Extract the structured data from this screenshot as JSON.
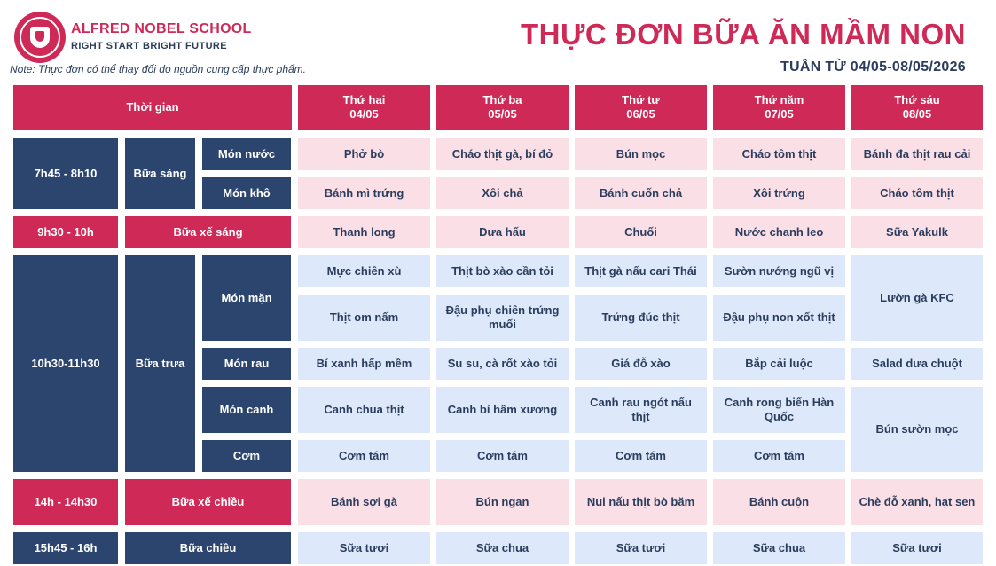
{
  "header": {
    "school_name": "ALFRED NOBEL SCHOOL",
    "slogan": "RIGHT START  BRIGHT FUTURE",
    "note": "Note: Thực đơn có thể thay đổi do nguồn cung cấp thực phẩm.",
    "title": "THỰC ĐƠN BỮA ĂN MẦM NON",
    "week": "TUẦN TỪ 04/05-08/05/2026"
  },
  "colors": {
    "brand_red": "#cf2a57",
    "navy": "#2b456e",
    "pink_cell": "#fbdfe7",
    "blue_cell": "#dde9fb"
  },
  "icons": {
    "logo": "school-crest-icon"
  },
  "table": {
    "time_header": "Thời gian",
    "days": [
      {
        "name": "Thứ hai",
        "date": "04/05"
      },
      {
        "name": "Thứ ba",
        "date": "05/05"
      },
      {
        "name": "Thứ tư",
        "date": "06/05"
      },
      {
        "name": "Thứ năm",
        "date": "07/05"
      },
      {
        "name": "Thứ sáu",
        "date": "08/05"
      }
    ],
    "breakfast": {
      "time": "7h45 - 8h10",
      "meal": "Bữa sáng",
      "soup_label": "Món nước",
      "dry_label": "Món khô",
      "soup": [
        "Phở bò",
        "Cháo thịt gà, bí đỏ",
        "Bún mọc",
        "Cháo tôm thịt",
        "Bánh đa thịt rau cải"
      ],
      "dry": [
        "Bánh mì trứng",
        "Xôi chả",
        "Bánh cuốn chả",
        "Xôi trứng",
        "Cháo tôm thịt"
      ]
    },
    "morning_snack": {
      "time": "9h30 - 10h",
      "meal": "Bữa xế sáng",
      "items": [
        "Thanh long",
        "Dưa hấu",
        "Chuối",
        "Nước chanh leo",
        "Sữa Yakulk"
      ]
    },
    "lunch": {
      "time": "10h30-11h30",
      "meal": "Bữa trưa",
      "savory_label": "Món mặn",
      "veg_label": "Món rau",
      "soup_label": "Món canh",
      "rice_label": "Cơm",
      "savory1": [
        "Mực chiên xù",
        "Thịt bò xào cần tỏi",
        "Thịt gà nấu cari Thái",
        "Sườn nướng ngũ vị"
      ],
      "savory2": [
        "Thịt om nấm",
        "Đậu phụ chiên trứng muối",
        "Trứng đúc thịt",
        "Đậu phụ non xốt thịt"
      ],
      "savory_fri": "Lườn gà KFC",
      "veg": [
        "Bí xanh hấp mềm",
        "Su su, cà rốt xào tỏi",
        "Giá đỗ xào",
        "Bắp cải luộc",
        "Salad dưa chuột"
      ],
      "soup": [
        "Canh chua thịt",
        "Canh bí hầm xương",
        "Canh rau ngót nấu thịt",
        "Canh rong biển Hàn Quốc"
      ],
      "rice": [
        "Cơm tám",
        "Cơm tám",
        "Cơm tám",
        "Cơm tám"
      ],
      "fri_soup_rice": "Bún sườn mọc"
    },
    "afternoon_snack": {
      "time": "14h - 14h30",
      "meal": "Bữa xế chiều",
      "items": [
        "Bánh sợi gà",
        "Bún ngan",
        "Nui nấu thịt bò băm",
        "Bánh cuộn",
        "Chè đỗ xanh, hạt sen"
      ]
    },
    "afternoon": {
      "time": "15h45 - 16h",
      "meal": "Bữa chiều",
      "items": [
        "Sữa tươi",
        "Sữa chua",
        "Sữa tươi",
        "Sữa chua",
        "Sữa tươi"
      ]
    }
  }
}
